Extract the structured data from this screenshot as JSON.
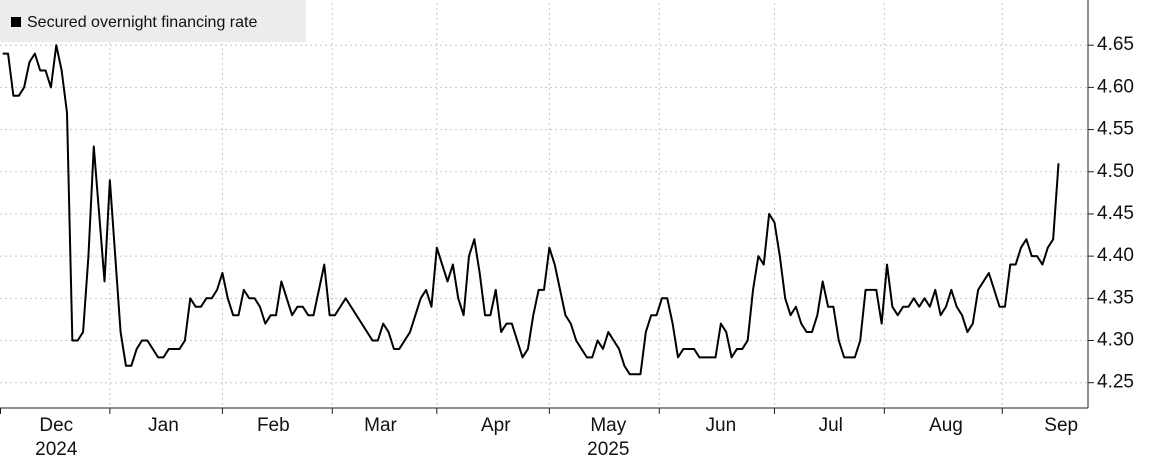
{
  "chart_data": {
    "type": "line",
    "series": [
      {
        "name": "Secured overnight financing rate",
        "color": "#000000",
        "values": [
          4.64,
          4.64,
          4.59,
          4.59,
          4.6,
          4.63,
          4.64,
          4.62,
          4.62,
          4.6,
          4.65,
          4.62,
          4.57,
          4.3,
          4.3,
          4.31,
          4.4,
          4.53,
          4.45,
          4.37,
          4.49,
          4.4,
          4.31,
          4.27,
          4.27,
          4.29,
          4.3,
          4.3,
          4.29,
          4.28,
          4.28,
          4.29,
          4.29,
          4.29,
          4.3,
          4.35,
          4.34,
          4.34,
          4.35,
          4.35,
          4.36,
          4.38,
          4.35,
          4.33,
          4.33,
          4.36,
          4.35,
          4.35,
          4.34,
          4.32,
          4.33,
          4.33,
          4.37,
          4.35,
          4.33,
          4.34,
          4.34,
          4.33,
          4.33,
          4.36,
          4.39,
          4.33,
          4.33,
          4.34,
          4.35,
          4.34,
          4.33,
          4.32,
          4.31,
          4.3,
          4.3,
          4.32,
          4.31,
          4.29,
          4.29,
          4.3,
          4.31,
          4.33,
          4.35,
          4.36,
          4.34,
          4.41,
          4.39,
          4.37,
          4.39,
          4.35,
          4.33,
          4.4,
          4.42,
          4.38,
          4.33,
          4.33,
          4.36,
          4.31,
          4.32,
          4.32,
          4.3,
          4.28,
          4.29,
          4.33,
          4.36,
          4.36,
          4.41,
          4.39,
          4.36,
          4.33,
          4.32,
          4.3,
          4.29,
          4.28,
          4.28,
          4.3,
          4.29,
          4.31,
          4.3,
          4.29,
          4.27,
          4.26,
          4.26,
          4.26,
          4.31,
          4.33,
          4.33,
          4.35,
          4.35,
          4.32,
          4.28,
          4.29,
          4.29,
          4.29,
          4.28,
          4.28,
          4.28,
          4.28,
          4.32,
          4.31,
          4.28,
          4.29,
          4.29,
          4.3,
          4.36,
          4.4,
          4.39,
          4.45,
          4.44,
          4.4,
          4.35,
          4.33,
          4.34,
          4.32,
          4.31,
          4.31,
          4.33,
          4.37,
          4.34,
          4.34,
          4.3,
          4.28,
          4.28,
          4.28,
          4.3,
          4.36,
          4.36,
          4.36,
          4.32,
          4.39,
          4.34,
          4.33,
          4.34,
          4.34,
          4.35,
          4.34,
          4.35,
          4.34,
          4.36,
          4.33,
          4.34,
          4.36,
          4.34,
          4.33,
          4.31,
          4.32,
          4.36,
          4.37,
          4.38,
          4.36,
          4.34,
          4.34,
          4.39,
          4.39,
          4.41,
          4.42,
          4.4,
          4.4,
          4.39,
          4.41,
          4.42,
          4.51
        ]
      }
    ],
    "xlim": [
      -0.5,
      202.5
    ],
    "xticks": [
      {
        "value": 10,
        "label": "Dec"
      },
      {
        "value": 30,
        "label": "Jan"
      },
      {
        "value": 50.5,
        "label": "Feb"
      },
      {
        "value": 70.5,
        "label": "Mar"
      },
      {
        "value": 92,
        "label": "Apr"
      },
      {
        "value": 113,
        "label": "May"
      },
      {
        "value": 134,
        "label": "Jun"
      },
      {
        "value": 154.5,
        "label": "Jul"
      },
      {
        "value": 176,
        "label": "Aug"
      },
      {
        "value": 197.5,
        "label": "Sep"
      }
    ],
    "year_labels": [
      {
        "value": 10,
        "label": "2024"
      },
      {
        "value": 113,
        "label": "2025"
      }
    ],
    "xgrid": [
      20,
      41,
      61.5,
      81,
      102,
      122.5,
      144,
      164.5,
      186.5
    ],
    "ylim": [
      4.22,
      4.7
    ],
    "yticks": [
      4.25,
      {
        "value": 4.3,
        "label": "4.30"
      },
      4.35,
      {
        "value": 4.4,
        "label": "4.40"
      },
      4.45,
      {
        "value": 4.5,
        "label": "4.50"
      },
      4.55,
      {
        "value": 4.6,
        "label": "4.60"
      },
      4.65
    ],
    "y_axis_side": "right",
    "grid": true,
    "legend": "top-left"
  }
}
